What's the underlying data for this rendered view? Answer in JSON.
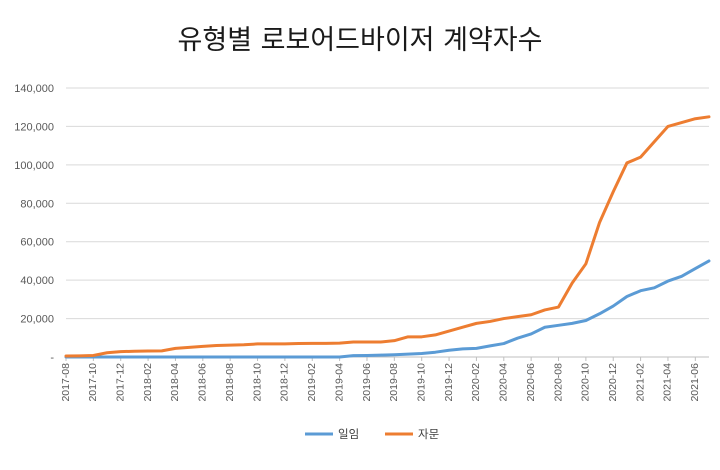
{
  "title": "유형별 로보어드바이저 계약자수",
  "chart_data": {
    "type": "line",
    "title": "유형별 로보어드바이저 계약자수",
    "xlabel": "",
    "ylabel": "",
    "ylim": [
      0,
      140000
    ],
    "yticks": [
      0,
      20000,
      40000,
      60000,
      80000,
      100000,
      120000,
      140000
    ],
    "ytick_labels": [
      "-",
      "20,000",
      "40,000",
      "60,000",
      "80,000",
      "100,000",
      "120,000",
      "140,000"
    ],
    "grid": true,
    "legend_position": "bottom",
    "x": [
      "2017-08",
      "2017-09",
      "2017-10",
      "2017-11",
      "2017-12",
      "2018-01",
      "2018-02",
      "2018-03",
      "2018-04",
      "2018-05",
      "2018-06",
      "2018-07",
      "2018-08",
      "2018-09",
      "2018-10",
      "2018-11",
      "2018-12",
      "2019-01",
      "2019-02",
      "2019-03",
      "2019-04",
      "2019-05",
      "2019-06",
      "2019-07",
      "2019-08",
      "2019-09",
      "2019-10",
      "2019-11",
      "2019-12",
      "2020-01",
      "2020-02",
      "2020-03",
      "2020-04",
      "2020-05",
      "2020-06",
      "2020-07",
      "2020-08",
      "2020-09",
      "2020-10",
      "2020-11",
      "2020-12",
      "2021-01",
      "2021-02",
      "2021-03",
      "2021-04",
      "2021-05",
      "2021-06",
      "2021-07"
    ],
    "x_tick_labels": [
      "2017-08",
      "2017-10",
      "2017-12",
      "2018-02",
      "2018-04",
      "2018-06",
      "2018-08",
      "2018-10",
      "2018-12",
      "2019-02",
      "2019-04",
      "2019-06",
      "2019-08",
      "2019-10",
      "2019-12",
      "2020-02",
      "2020-04",
      "2020-06",
      "2020-08",
      "2020-10",
      "2020-12",
      "2021-02",
      "2021-04",
      "2021-06"
    ],
    "series": [
      {
        "name": "일임",
        "color": "#5B9BD5",
        "values": [
          0,
          0,
          0,
          0,
          0,
          0,
          0,
          0,
          0,
          0,
          0,
          0,
          0,
          0,
          0,
          0,
          0,
          0,
          0,
          0,
          0,
          700,
          800,
          1000,
          1200,
          1500,
          1800,
          2500,
          3500,
          4200,
          4500,
          5800,
          7000,
          9800,
          12000,
          15500,
          16500,
          17500,
          19000,
          22500,
          26500,
          31500,
          34500,
          36000,
          39500,
          42000,
          46000,
          50000
        ]
      },
      {
        "name": "자문",
        "color": "#ED7D31",
        "values": [
          500,
          600,
          800,
          2200,
          2800,
          3000,
          3100,
          3200,
          4500,
          5000,
          5500,
          6000,
          6200,
          6400,
          6800,
          6800,
          6800,
          7000,
          7100,
          7100,
          7200,
          7800,
          7800,
          7800,
          8500,
          10500,
          10500,
          11500,
          13500,
          15500,
          17500,
          18500,
          20000,
          21000,
          22000,
          24500,
          26000,
          38500,
          48500,
          70000,
          86000,
          101000,
          104000,
          112000,
          120000,
          122000,
          124000,
          125000
        ]
      }
    ]
  }
}
